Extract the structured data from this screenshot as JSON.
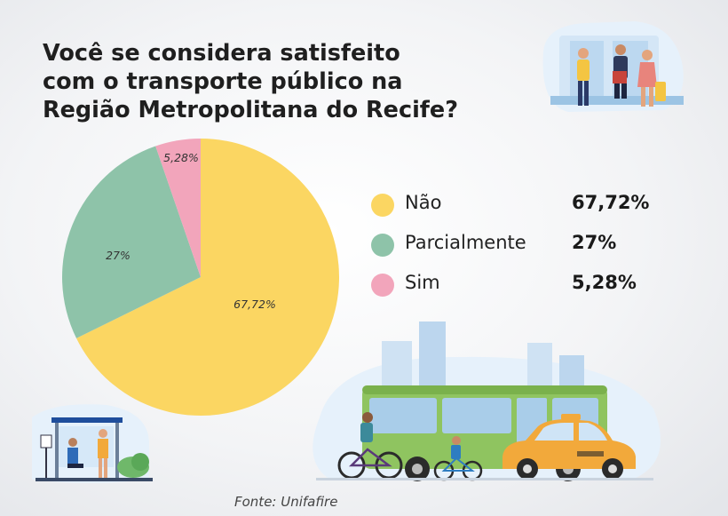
{
  "title_lines": [
    "Você se considera satisfeito",
    "com o transporte público na",
    "Região Metropolitana do Recife?"
  ],
  "source": "Fonte: Unifafire",
  "colors": {
    "nao": "#fbd662",
    "parcialmente": "#8ec3a9",
    "sim": "#f2a5bb"
  },
  "chart_data": {
    "type": "pie",
    "title": "Você se considera satisfeito com o transporte público na Região Metropolitana do Recife?",
    "series": [
      {
        "name": "Não",
        "value": 67.72,
        "label": "67,72%",
        "color": "#fbd662"
      },
      {
        "name": "Parcialmente",
        "value": 27,
        "label": "27%",
        "color": "#8ec3a9"
      },
      {
        "name": "Sim",
        "value": 5.28,
        "label": "5,28%",
        "color": "#f2a5bb"
      }
    ],
    "legend_position": "right"
  },
  "icons": [
    "train-passengers-illustration-icon",
    "bus-stop-illustration-icon",
    "city-bus-illustration-icon",
    "bicycle-icon",
    "taxi-icon",
    "skyline-icon"
  ]
}
